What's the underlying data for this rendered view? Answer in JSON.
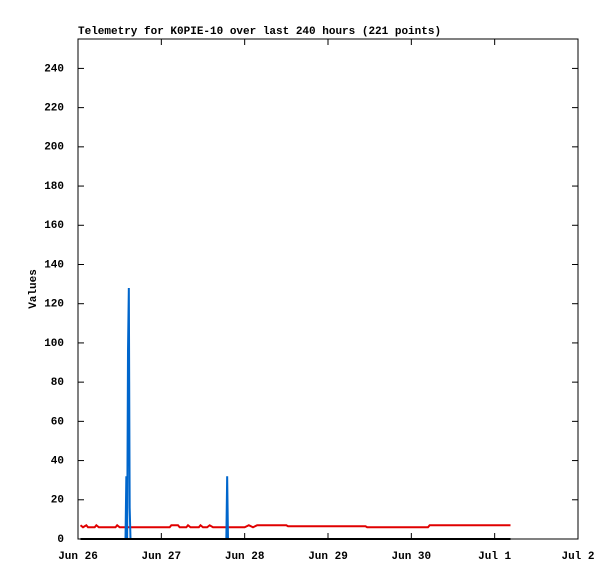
{
  "chart_data": {
    "type": "line",
    "title": "Telemetry for K0PIE-10 over last 240 hours (221 points)",
    "y_label": "Values",
    "xlim": [
      0,
      6
    ],
    "xticks": [
      {
        "value": 0,
        "label": "Jun 26"
      },
      {
        "value": 1,
        "label": "Jun 27"
      },
      {
        "value": 2,
        "label": "Jun 28"
      },
      {
        "value": 3,
        "label": "Jun 29"
      },
      {
        "value": 4,
        "label": "Jun 30"
      },
      {
        "value": 5,
        "label": "Jul 1"
      },
      {
        "value": 6,
        "label": "Jul 2"
      }
    ],
    "ylim": [
      0,
      255
    ],
    "yticks": [
      0,
      20,
      40,
      60,
      80,
      100,
      120,
      140,
      160,
      180,
      200,
      220,
      240
    ],
    "grid": false,
    "series": [
      {
        "color": "#e00000",
        "x": [
          0.03,
          0.06,
          0.1,
          0.12,
          0.2,
          0.22,
          0.25,
          0.45,
          0.47,
          0.5,
          0.7,
          1.1,
          1.12,
          1.2,
          1.22,
          1.3,
          1.32,
          1.35,
          1.45,
          1.47,
          1.5,
          1.55,
          1.58,
          1.62,
          2.0,
          2.05,
          2.1,
          2.15,
          2.5,
          2.52,
          3.45,
          3.47,
          4.2,
          4.22,
          5.19
        ],
        "values": [
          7,
          6,
          7,
          6,
          6,
          7,
          6,
          6,
          7,
          6,
          6,
          6,
          7,
          7,
          6,
          6,
          7,
          6,
          6,
          7,
          6,
          6,
          7,
          6,
          6,
          7,
          6,
          7,
          7,
          6.5,
          6.5,
          6,
          6,
          7,
          7
        ]
      },
      {
        "color": "#0066cc",
        "x": [
          0.03,
          0.57,
          0.58,
          0.59,
          0.6,
          0.61,
          0.62,
          0.63,
          1.78,
          1.79,
          1.8,
          5.19
        ],
        "values": [
          0,
          0,
          32,
          0,
          96,
          128,
          16,
          0,
          0,
          32,
          0,
          0
        ]
      },
      {
        "color": "#000000",
        "x": [
          0.03,
          5.19
        ],
        "values": [
          0,
          0
        ]
      }
    ]
  }
}
